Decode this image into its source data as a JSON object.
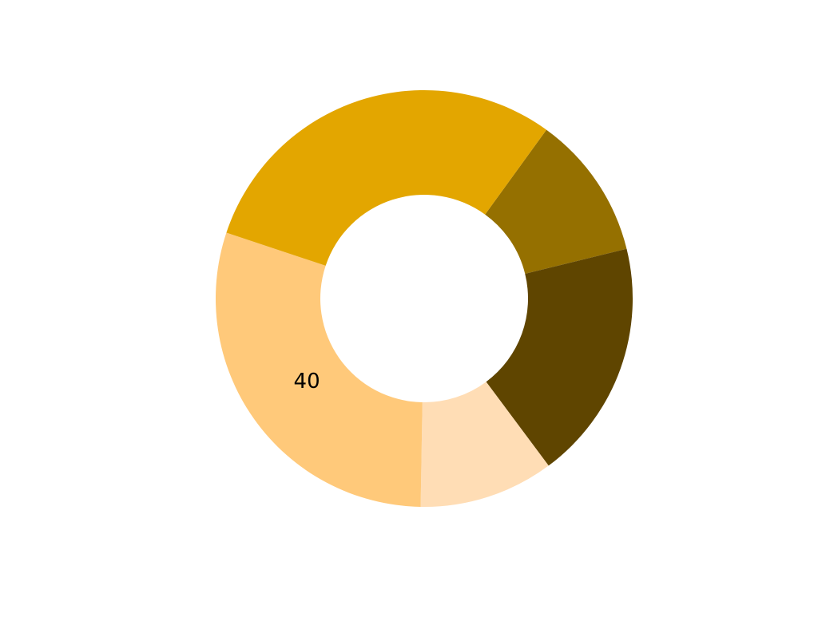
{
  "chart_data": {
    "type": "pie",
    "donut": true,
    "direction": "clockwise",
    "start_angle_deg": 35.9,
    "slices": [
      {
        "value": 15,
        "color": "#957000",
        "label": ""
      },
      {
        "value": 25,
        "color": "#5F4500",
        "label": ""
      },
      {
        "value": 14,
        "color": "#FFDDB5",
        "label": ""
      },
      {
        "value": 40,
        "color": "#FFC97A",
        "label": "40"
      },
      {
        "value": 40,
        "color": "#E3A600",
        "label": ""
      }
    ],
    "legend": "none",
    "title": ""
  }
}
